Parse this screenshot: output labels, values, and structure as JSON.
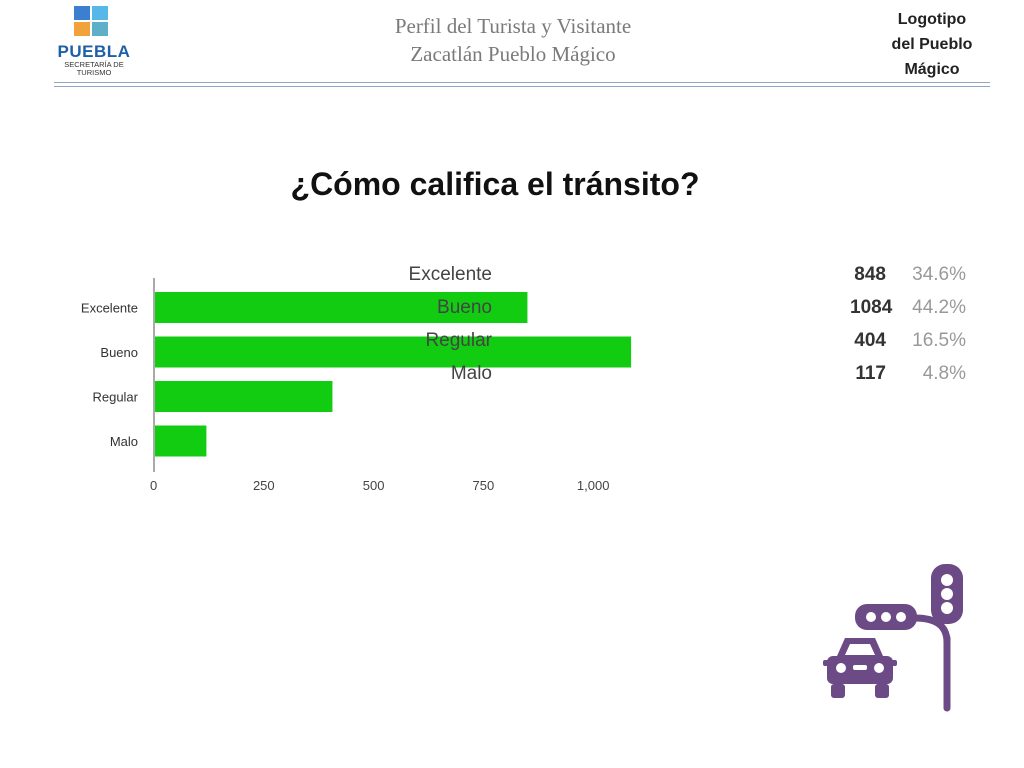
{
  "header": {
    "logo": {
      "main": "PUEBLA",
      "sub_line1": "SECRETARÍA DE",
      "sub_line2": "TURISMO"
    },
    "title_line1": "Perfil del Turista y Visitante",
    "title_line2": "Zacatlán Pueblo Mágico",
    "note_line1": "Logotipo",
    "note_line2": "del Pueblo",
    "note_line3": "Mágico"
  },
  "question": "¿Cómo califica el tránsito?",
  "summary": {
    "rows": [
      {
        "label": "Excelente",
        "count": "848",
        "pct": "34.6%"
      },
      {
        "label": "Bueno",
        "count": "1084",
        "pct": "44.2%"
      },
      {
        "label": "Regular",
        "count": "404",
        "pct": "16.5%"
      },
      {
        "label": "Malo",
        "count": "117",
        "pct": "4.8%"
      }
    ]
  },
  "chart_data": {
    "type": "bar",
    "orientation": "horizontal",
    "categories": [
      "Excelente",
      "Bueno",
      "Regular",
      "Malo"
    ],
    "values": [
      848,
      1084,
      404,
      117
    ],
    "xticks": [
      "0",
      "250",
      "500",
      "750",
      "1,000"
    ],
    "xlim": [
      0,
      1100
    ],
    "bar_color": "#11cc11",
    "grid": false
  },
  "icon": {
    "name": "traffic-light-car-icon",
    "color": "#6b4a85"
  }
}
